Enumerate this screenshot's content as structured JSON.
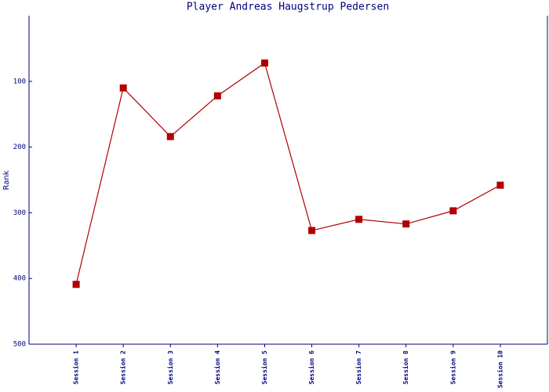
{
  "chart_data": {
    "type": "line",
    "title": "Player Andreas Haugstrup Pedersen",
    "y_label": "Rank",
    "categories": [
      "Session 1",
      "Session 2",
      "Session 3",
      "Session 4",
      "Session 5",
      "Session 6",
      "Session 7",
      "Session 8",
      "Session 9",
      "Session 10"
    ],
    "series": [
      {
        "name": "Rank",
        "color": "#b00000",
        "values": [
          409,
          110,
          184,
          122,
          72,
          327,
          310,
          317,
          297,
          258
        ]
      }
    ],
    "ylim": [
      0,
      500
    ],
    "yticks": [
      100,
      200,
      300,
      400,
      500
    ],
    "y_inverted": true,
    "axis_color": "#000080"
  }
}
